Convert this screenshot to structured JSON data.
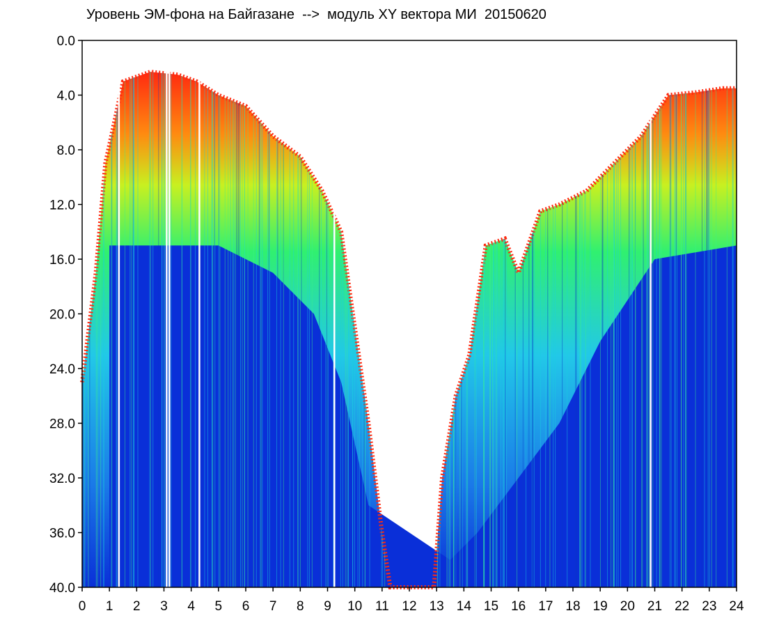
{
  "chart_data": {
    "type": "heatmap",
    "title": "Уровень ЭМ-фона на Байгазане  -->  модуль XY вектора МИ  20150620",
    "xlabel": "",
    "ylabel": "",
    "xlim": [
      0,
      24
    ],
    "ylim": [
      0,
      40
    ],
    "y_inverted": true,
    "x_ticks": [
      "0",
      "1",
      "2",
      "3",
      "4",
      "5",
      "6",
      "7",
      "8",
      "9",
      "10",
      "11",
      "12",
      "13",
      "14",
      "15",
      "16",
      "17",
      "18",
      "19",
      "20",
      "21",
      "22",
      "23",
      "24"
    ],
    "y_ticks": [
      "0.0",
      "4.0",
      "8.0",
      "12.0",
      "16.0",
      "20.0",
      "24.0",
      "28.0",
      "32.0",
      "36.0",
      "40.0"
    ],
    "colors": {
      "low": "#0a2fd8",
      "mid": "#22c8e8",
      "high": "#8cf040",
      "peak": "#ff2a10"
    },
    "upper_envelope": [
      {
        "x": 0.0,
        "y": 25.0
      },
      {
        "x": 0.5,
        "y": 17.0
      },
      {
        "x": 0.85,
        "y": 9.0
      },
      {
        "x": 1.5,
        "y": 3.0
      },
      {
        "x": 2.5,
        "y": 2.3
      },
      {
        "x": 3.5,
        "y": 2.5
      },
      {
        "x": 4.2,
        "y": 3.0
      },
      {
        "x": 5.0,
        "y": 4.0
      },
      {
        "x": 6.0,
        "y": 4.8
      },
      {
        "x": 7.0,
        "y": 7.0
      },
      {
        "x": 8.0,
        "y": 8.5
      },
      {
        "x": 8.8,
        "y": 11.0
      },
      {
        "x": 9.5,
        "y": 14.0
      },
      {
        "x": 10.0,
        "y": 21.0
      },
      {
        "x": 10.5,
        "y": 28.0
      },
      {
        "x": 11.0,
        "y": 36.0
      },
      {
        "x": 11.3,
        "y": 40.0
      },
      {
        "x": 12.9,
        "y": 40.0
      },
      {
        "x": 13.2,
        "y": 32.0
      },
      {
        "x": 13.7,
        "y": 26.0
      },
      {
        "x": 14.2,
        "y": 23.0
      },
      {
        "x": 14.8,
        "y": 15.0
      },
      {
        "x": 15.5,
        "y": 14.5
      },
      {
        "x": 16.0,
        "y": 17.0
      },
      {
        "x": 16.8,
        "y": 12.5
      },
      {
        "x": 17.5,
        "y": 12.0
      },
      {
        "x": 18.5,
        "y": 11.0
      },
      {
        "x": 19.5,
        "y": 9.0
      },
      {
        "x": 20.5,
        "y": 7.0
      },
      {
        "x": 21.5,
        "y": 4.0
      },
      {
        "x": 22.5,
        "y": 3.8
      },
      {
        "x": 23.5,
        "y": 3.5
      },
      {
        "x": 24.0,
        "y": 3.5
      }
    ],
    "blue_floor_top": [
      {
        "x": 1.0,
        "y": 15.0
      },
      {
        "x": 5.0,
        "y": 15.0
      },
      {
        "x": 7.0,
        "y": 17.0
      },
      {
        "x": 8.5,
        "y": 20.0
      },
      {
        "x": 9.5,
        "y": 25.0
      },
      {
        "x": 10.5,
        "y": 34.0
      },
      {
        "x": 13.5,
        "y": 38.0
      },
      {
        "x": 14.5,
        "y": 36.0
      },
      {
        "x": 16.0,
        "y": 32.0
      },
      {
        "x": 17.5,
        "y": 28.0
      },
      {
        "x": 19.0,
        "y": 22.0
      },
      {
        "x": 21.0,
        "y": 16.0
      },
      {
        "x": 24.0,
        "y": 15.0
      }
    ],
    "gaps_x": [
      1.35,
      3.1,
      3.2,
      4.3,
      9.25,
      20.85
    ]
  }
}
